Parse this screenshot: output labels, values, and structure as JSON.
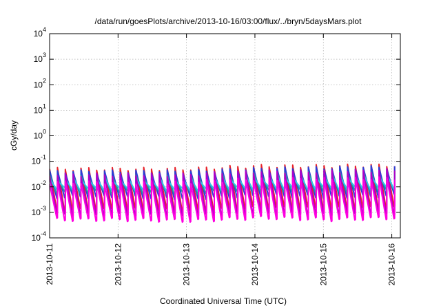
{
  "chart_data": {
    "type": "line",
    "title": "/data/run/goesPlots/archive/2013-10-16/03:00/flux/../bryn/5daysMars.plot",
    "xlabel": "Coordinated Universal Time (UTC)",
    "ylabel": "cGy/day",
    "yscale": "log",
    "ylim": [
      0.0001,
      10000
    ],
    "xlim": [
      "2013-10-11T00:00",
      "2013-10-16T03:00"
    ],
    "grid": true,
    "x_ticks": [
      "2013-10-11",
      "2013-10-12",
      "2013-10-13",
      "2013-10-14",
      "2013-10-15",
      "2013-10-16"
    ],
    "y_ticks": [
      {
        "base": "10",
        "exp": "-4",
        "value": 0.0001
      },
      {
        "base": "10",
        "exp": "-3",
        "value": 0.001
      },
      {
        "base": "10",
        "exp": "-2",
        "value": 0.01
      },
      {
        "base": "10",
        "exp": "-1",
        "value": 0.1
      },
      {
        "base": "10",
        "exp": "0",
        "value": 1
      },
      {
        "base": "10",
        "exp": "1",
        "value": 10
      },
      {
        "base": "10",
        "exp": "2",
        "value": 100
      },
      {
        "base": "10",
        "exp": "3",
        "value": 1000
      },
      {
        "base": "10",
        "exp": "4",
        "value": 10000
      }
    ],
    "cycle_period_hours": 2.75,
    "series": [
      {
        "color": "#e8222a",
        "peak": [
          0.05,
          0.05,
          0.05,
          0.065,
          0.065,
          0.07
        ],
        "trough": [
          0.0012,
          0.0013,
          0.0011,
          0.0015,
          0.0014,
          0.0015
        ]
      },
      {
        "color": "#2a3fd6",
        "peak": [
          0.04,
          0.04,
          0.04,
          0.05,
          0.055,
          0.06
        ],
        "trough": [
          0.004,
          0.004,
          0.0035,
          0.0045,
          0.004,
          0.0045
        ]
      },
      {
        "color": "#1fa89a",
        "peak": [
          0.025,
          0.025,
          0.025,
          0.032,
          0.035,
          0.035
        ],
        "trough": [
          0.006,
          0.006,
          0.0055,
          0.007,
          0.0065,
          0.007
        ]
      },
      {
        "color": "#2ec4e8",
        "peak": [
          0.02,
          0.02,
          0.02,
          0.025,
          0.026,
          0.028
        ],
        "trough": [
          0.008,
          0.008,
          0.0075,
          0.009,
          0.0085,
          0.009
        ]
      },
      {
        "color": "#b000c8",
        "peak": [
          0.03,
          0.03,
          0.03,
          0.04,
          0.04,
          0.045
        ],
        "trough": [
          0.0008,
          0.0008,
          0.0007,
          0.0009,
          0.0008,
          0.0009
        ]
      },
      {
        "color": "#ff00e0",
        "peak": [
          0.015,
          0.015,
          0.015,
          0.02,
          0.02,
          0.022
        ],
        "trough": [
          0.0005,
          0.0005,
          0.00045,
          0.0006,
          0.0005,
          0.0006
        ]
      }
    ]
  }
}
